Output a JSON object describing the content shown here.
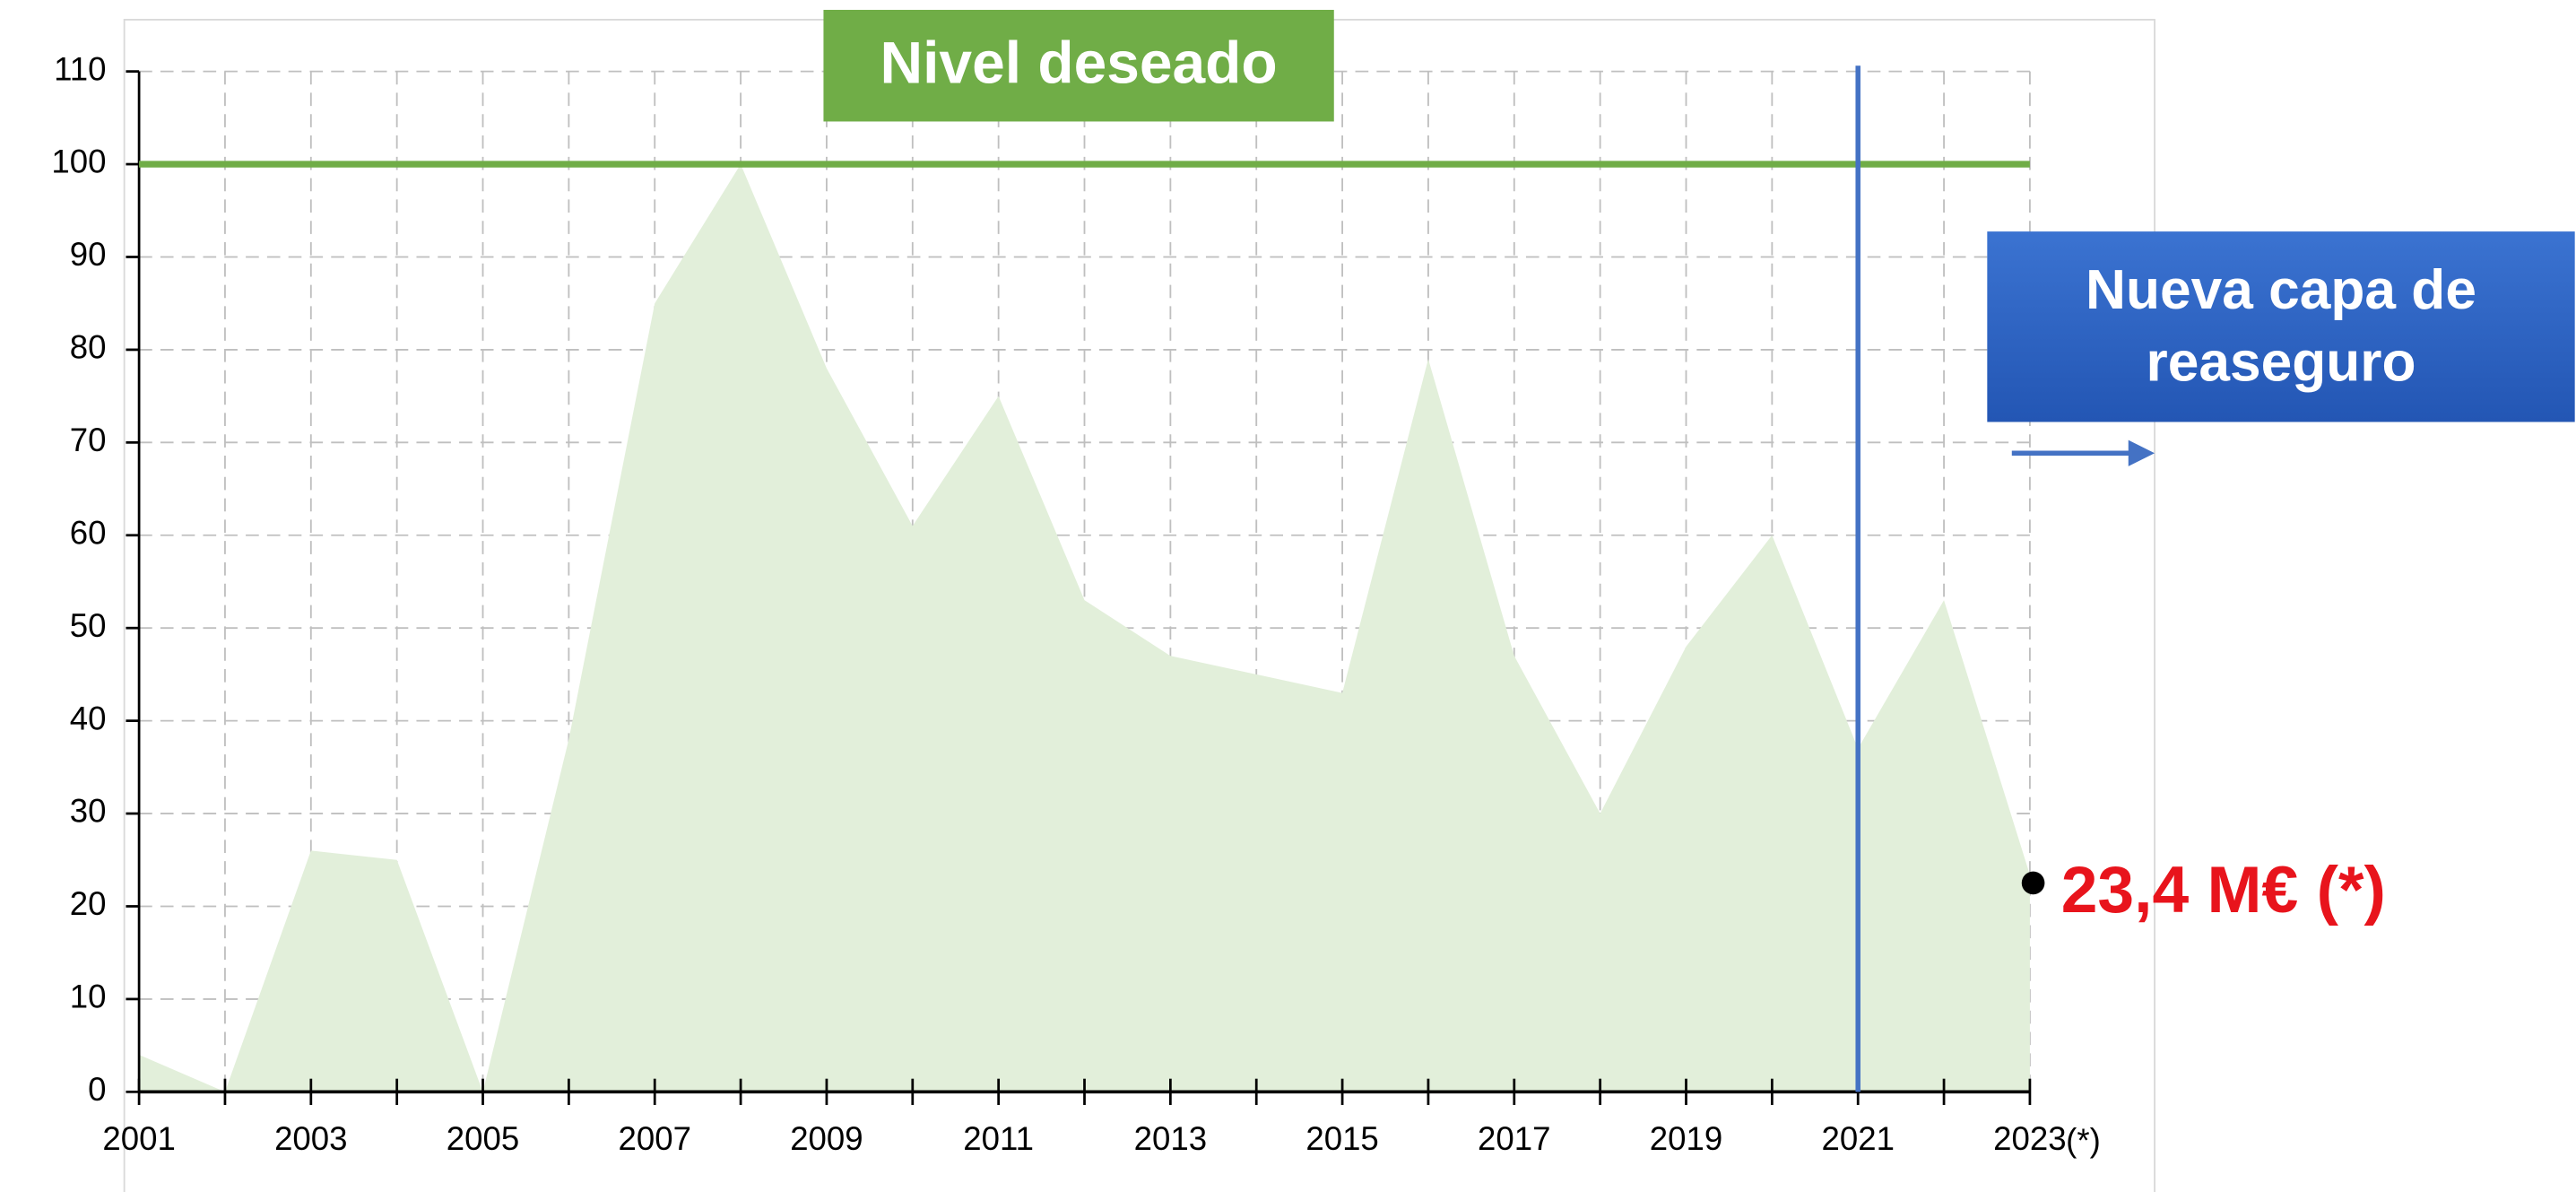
{
  "chart_data": {
    "type": "area",
    "x": [
      2001,
      2002,
      2003,
      2004,
      2005,
      2006,
      2007,
      2008,
      2009,
      2010,
      2011,
      2012,
      2013,
      2014,
      2015,
      2016,
      2017,
      2018,
      2019,
      2020,
      2021,
      2022,
      2023
    ],
    "values": [
      4,
      0,
      26,
      25,
      0,
      38,
      85,
      100,
      78,
      61,
      75,
      53,
      47,
      45,
      43,
      79,
      47,
      30,
      48,
      60,
      37,
      53,
      23.4
    ],
    "color": "#e2efda",
    "xlim": [
      2001,
      2023
    ],
    "xticks": [
      2001,
      2003,
      2005,
      2007,
      2009,
      2011,
      2013,
      2015,
      2017,
      2019,
      2021,
      2023
    ],
    "ylim": [
      0,
      110
    ],
    "yticks": [
      0,
      10,
      20,
      30,
      40,
      50,
      60,
      70,
      80,
      90,
      100,
      110
    ],
    "grid": true,
    "x_note": "(*)",
    "target_line": {
      "label": "Nivel deseado",
      "value": 100,
      "color": "#70ad47"
    },
    "vertical_line": {
      "x": 2021,
      "label": "Nueva capa de reaseguro",
      "color": "#4472c4"
    },
    "last_value_label": "23,4 M€ (*)"
  }
}
